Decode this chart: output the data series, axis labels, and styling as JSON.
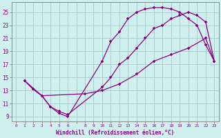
{
  "background_color": "#cff0ee",
  "grid_color": "#aacccc",
  "line_color": "#880088",
  "marker": "+",
  "xlabel": "Windchill (Refroidissement éolien,°C)",
  "ylabel_ticks": [
    9,
    11,
    13,
    15,
    17,
    19,
    21,
    23,
    25
  ],
  "xtick_labels": [
    "0",
    "1",
    "2",
    "3",
    "4",
    "5",
    "6",
    "",
    "8",
    "9",
    "10",
    "11",
    "12",
    "13",
    "14",
    "15",
    "16",
    "17",
    "18",
    "19",
    "20",
    "21",
    "22",
    "23"
  ],
  "xlim": [
    -0.5,
    23.5
  ],
  "ylim": [
    8.3,
    26.5
  ],
  "line1": {
    "x": [
      1,
      2,
      3,
      4,
      5,
      6,
      10,
      11,
      12,
      13,
      14,
      15,
      16,
      17,
      18,
      19,
      20,
      21,
      22,
      23
    ],
    "y": [
      14.5,
      13.2,
      12.2,
      10.5,
      9.5,
      9.0,
      17.5,
      20.5,
      22.0,
      24.0,
      25.0,
      25.5,
      25.7,
      25.7,
      25.5,
      25.0,
      24.0,
      23.0,
      20.0,
      17.5
    ]
  },
  "line2": {
    "x": [
      1,
      2,
      3,
      4,
      5,
      6,
      10,
      11,
      12,
      13,
      14,
      15,
      16,
      17,
      18,
      19,
      20,
      21,
      22,
      23
    ],
    "y": [
      14.5,
      13.2,
      12.2,
      10.5,
      9.8,
      9.3,
      13.5,
      15.0,
      17.0,
      18.0,
      19.5,
      21.0,
      22.5,
      23.0,
      24.0,
      24.5,
      25.0,
      24.5,
      23.5,
      17.5
    ]
  },
  "line3": {
    "x": [
      1,
      3,
      8,
      10,
      12,
      14,
      16,
      18,
      20,
      22,
      23
    ],
    "y": [
      14.5,
      12.2,
      12.5,
      13.0,
      14.0,
      15.5,
      17.5,
      18.5,
      19.5,
      21.0,
      17.5
    ]
  }
}
